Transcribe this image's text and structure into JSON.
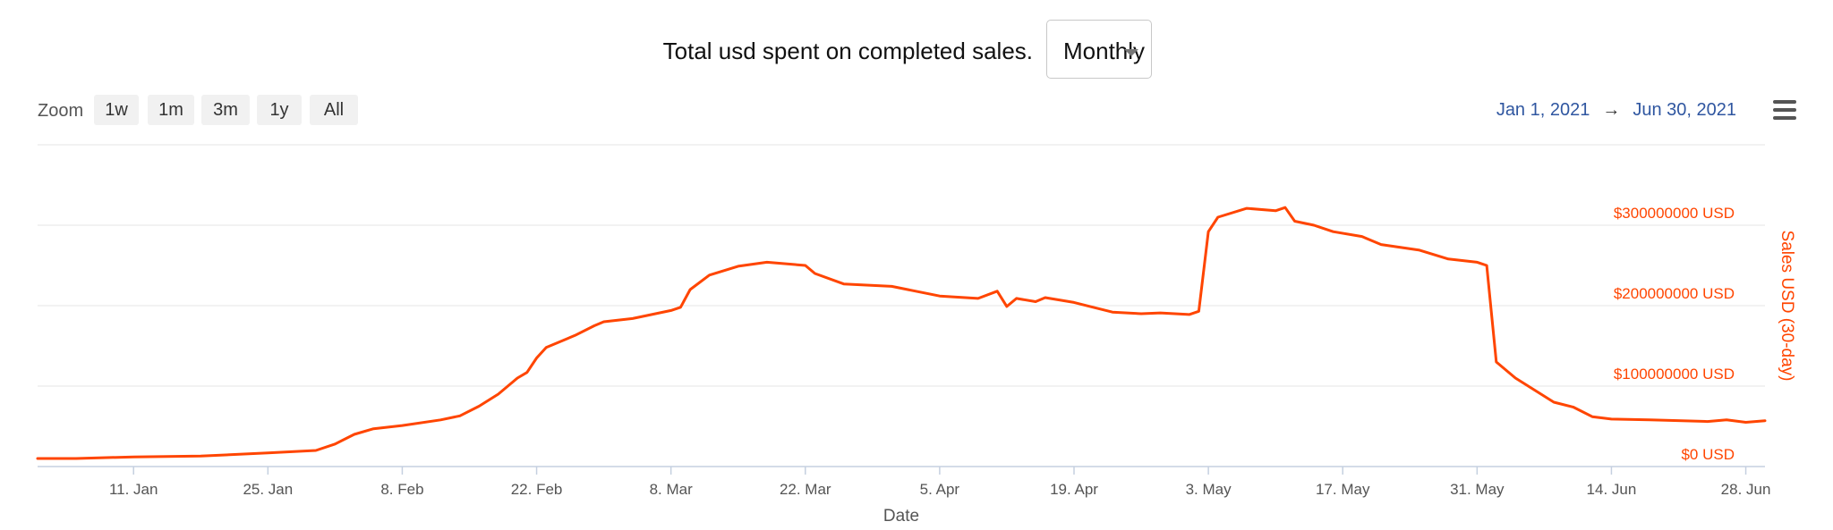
{
  "header": {
    "title": "Total usd spent on completed sales.",
    "period_select": {
      "value": "Monthly"
    }
  },
  "zoom": {
    "label": "Zoom",
    "buttons": [
      "1w",
      "1m",
      "3m",
      "1y",
      "All"
    ]
  },
  "range": {
    "from": "Jan 1, 2021",
    "arrow": "→",
    "to": "Jun 30, 2021"
  },
  "menu": {
    "icon": "hamburger-menu-icon"
  },
  "colors": {
    "series": "#ff4500",
    "axis_label": "#ff4500",
    "range_text": "#2f56a0",
    "grid": "#e6e6e6"
  },
  "chart_data": {
    "type": "line",
    "title": "Total usd spent on completed sales.",
    "xlabel": "Date",
    "ylabel": "Sales USD (30-day)",
    "x_range": [
      "2021-01-01",
      "2021-06-30"
    ],
    "ylim": [
      0,
      400000000
    ],
    "grid": true,
    "legend": "none",
    "x_ticks": [
      {
        "date": "2021-01-11",
        "label": "11. Jan"
      },
      {
        "date": "2021-01-25",
        "label": "25. Jan"
      },
      {
        "date": "2021-02-08",
        "label": "8. Feb"
      },
      {
        "date": "2021-02-22",
        "label": "22. Feb"
      },
      {
        "date": "2021-03-08",
        "label": "8. Mar"
      },
      {
        "date": "2021-03-22",
        "label": "22. Mar"
      },
      {
        "date": "2021-04-05",
        "label": "5. Apr"
      },
      {
        "date": "2021-04-19",
        "label": "19. Apr"
      },
      {
        "date": "2021-05-03",
        "label": "3. May"
      },
      {
        "date": "2021-05-17",
        "label": "17. May"
      },
      {
        "date": "2021-05-31",
        "label": "31. May"
      },
      {
        "date": "2021-06-14",
        "label": "14. Jun"
      },
      {
        "date": "2021-06-28",
        "label": "28. Jun"
      }
    ],
    "y_ticks": [
      {
        "value": 0,
        "label": "$0 USD"
      },
      {
        "value": 100000000,
        "label": "$100000000 USD"
      },
      {
        "value": 200000000,
        "label": "$200000000 USD"
      },
      {
        "value": 300000000,
        "label": "$300000000 USD"
      }
    ],
    "series": [
      {
        "points": [
          [
            "2021-01-01",
            10000000
          ],
          [
            "2021-01-05",
            10000000
          ],
          [
            "2021-01-11",
            12000000
          ],
          [
            "2021-01-18",
            13000000
          ],
          [
            "2021-01-25",
            17000000
          ],
          [
            "2021-01-30",
            20000000
          ],
          [
            "2021-02-01",
            28000000
          ],
          [
            "2021-02-03",
            40000000
          ],
          [
            "2021-02-05",
            47000000
          ],
          [
            "2021-02-08",
            51000000
          ],
          [
            "2021-02-12",
            58000000
          ],
          [
            "2021-02-14",
            63000000
          ],
          [
            "2021-02-16",
            75000000
          ],
          [
            "2021-02-18",
            90000000
          ],
          [
            "2021-02-20",
            110000000
          ],
          [
            "2021-02-21",
            117000000
          ],
          [
            "2021-02-22",
            135000000
          ],
          [
            "2021-02-23",
            148000000
          ],
          [
            "2021-02-26",
            163000000
          ],
          [
            "2021-02-28",
            175000000
          ],
          [
            "2021-03-01",
            180000000
          ],
          [
            "2021-03-04",
            184000000
          ],
          [
            "2021-03-08",
            194000000
          ],
          [
            "2021-03-09",
            198000000
          ],
          [
            "2021-03-10",
            220000000
          ],
          [
            "2021-03-12",
            238000000
          ],
          [
            "2021-03-15",
            249000000
          ],
          [
            "2021-03-18",
            254000000
          ],
          [
            "2021-03-22",
            250000000
          ],
          [
            "2021-03-23",
            240000000
          ],
          [
            "2021-03-26",
            227000000
          ],
          [
            "2021-03-31",
            224000000
          ],
          [
            "2021-04-05",
            212000000
          ],
          [
            "2021-04-09",
            209000000
          ],
          [
            "2021-04-11",
            218000000
          ],
          [
            "2021-04-12",
            199000000
          ],
          [
            "2021-04-13",
            209000000
          ],
          [
            "2021-04-15",
            205000000
          ],
          [
            "2021-04-16",
            210000000
          ],
          [
            "2021-04-19",
            204000000
          ],
          [
            "2021-04-21",
            198000000
          ],
          [
            "2021-04-23",
            192000000
          ],
          [
            "2021-04-26",
            190000000
          ],
          [
            "2021-04-28",
            191000000
          ],
          [
            "2021-05-01",
            189000000
          ],
          [
            "2021-05-02",
            193000000
          ],
          [
            "2021-05-03",
            292000000
          ],
          [
            "2021-05-04",
            310000000
          ],
          [
            "2021-05-07",
            321000000
          ],
          [
            "2021-05-10",
            318000000
          ],
          [
            "2021-05-11",
            322000000
          ],
          [
            "2021-05-12",
            305000000
          ],
          [
            "2021-05-14",
            300000000
          ],
          [
            "2021-05-16",
            292000000
          ],
          [
            "2021-05-19",
            286000000
          ],
          [
            "2021-05-21",
            276000000
          ],
          [
            "2021-05-25",
            269000000
          ],
          [
            "2021-05-28",
            258000000
          ],
          [
            "2021-05-31",
            254000000
          ],
          [
            "2021-06-01",
            250000000
          ],
          [
            "2021-06-02",
            130000000
          ],
          [
            "2021-06-04",
            110000000
          ],
          [
            "2021-06-08",
            80000000
          ],
          [
            "2021-06-10",
            74000000
          ],
          [
            "2021-06-12",
            62000000
          ],
          [
            "2021-06-14",
            59000000
          ],
          [
            "2021-06-18",
            58000000
          ],
          [
            "2021-06-24",
            56000000
          ],
          [
            "2021-06-26",
            58000000
          ],
          [
            "2021-06-28",
            55000000
          ],
          [
            "2021-06-30",
            57000000
          ]
        ]
      }
    ]
  }
}
